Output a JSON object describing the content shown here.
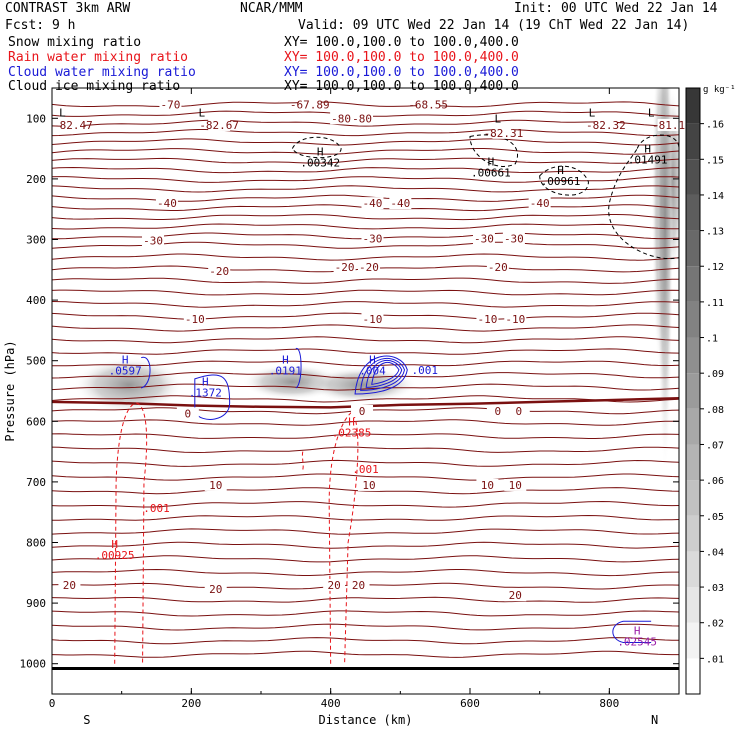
{
  "header": {
    "model": "CONTRAST  3km ARW",
    "center": "NCAR/MMM",
    "init": "Init: 00 UTC Wed 22 Jan 14",
    "fcst": "Fcst:   9 h",
    "valid": "Valid: 09 UTC Wed 22 Jan 14 (19 ChT Wed 22 Jan 14)"
  },
  "legend": [
    {
      "label": "Snow mixing ratio",
      "xy": "",
      "color": "#000000"
    },
    {
      "label": "Rain water mixing ratio",
      "xy": "XY= 100.0,100.0 to 100.0,400.0",
      "color": "#e8141a"
    },
    {
      "label": "Cloud water mixing ratio",
      "xy": "XY= 100.0,100.0 to 100.0,400.0",
      "color": "#1a1ad6"
    },
    {
      "label": "Cloud ice mixing ratio",
      "xy": "XY= 100.0,100.0 to 100.0,400.0",
      "color": "#000000"
    }
  ],
  "snow_xy": "XY= 100.0,100.0 to 100.0,400.0",
  "chart_data": {
    "type": "cross-section contour",
    "xlabel": "Distance (km)",
    "ylabel": "Pressure (hPa)",
    "xlim": [
      0,
      900
    ],
    "ylim": [
      1050,
      50
    ],
    "x_ticks": [
      0,
      200,
      400,
      600,
      800
    ],
    "y_ticks": [
      100,
      200,
      300,
      400,
      500,
      600,
      700,
      800,
      900,
      1000
    ],
    "end_labels": {
      "left": "S",
      "right": "N"
    },
    "colorbar": {
      "unit": "g kg⁻¹",
      "levels": [
        ".01",
        ".02",
        ".03",
        ".04",
        ".05",
        ".06",
        ".07",
        ".08",
        ".09",
        ".1",
        ".11",
        ".12",
        ".13",
        ".14",
        ".15",
        ".16"
      ]
    },
    "temperature_labels": [
      {
        "text": "-70",
        "x": 170,
        "p": 77
      },
      {
        "text": "-67.89",
        "x": 370,
        "p": 77
      },
      {
        "text": "-68.55",
        "x": 540,
        "p": 77
      },
      {
        "text": "-80",
        "x": 415,
        "p": 100
      },
      {
        "text": "-80",
        "x": 445,
        "p": 100
      },
      {
        "text": "-82.47",
        "x": 30,
        "p": 111
      },
      {
        "text": "-82.67",
        "x": 240,
        "p": 111
      },
      {
        "text": "-82.31",
        "x": 648,
        "p": 124
      },
      {
        "text": "-82.32",
        "x": 795,
        "p": 111
      },
      {
        "text": "-81.1",
        "x": 885,
        "p": 111
      },
      {
        "text": "-40",
        "x": 165,
        "p": 240
      },
      {
        "text": "-40",
        "x": 460,
        "p": 240
      },
      {
        "text": "-40",
        "x": 500,
        "p": 240
      },
      {
        "text": "-40",
        "x": 700,
        "p": 240
      },
      {
        "text": "-30",
        "x": 145,
        "p": 302
      },
      {
        "text": "-30",
        "x": 460,
        "p": 298
      },
      {
        "text": "-30",
        "x": 620,
        "p": 298
      },
      {
        "text": "-30",
        "x": 663,
        "p": 298
      },
      {
        "text": "-20",
        "x": 240,
        "p": 352
      },
      {
        "text": "-20",
        "x": 420,
        "p": 345
      },
      {
        "text": "-20",
        "x": 455,
        "p": 345
      },
      {
        "text": "-20",
        "x": 640,
        "p": 345
      },
      {
        "text": "-10",
        "x": 205,
        "p": 431
      },
      {
        "text": "-10",
        "x": 460,
        "p": 431
      },
      {
        "text": "-10",
        "x": 625,
        "p": 431
      },
      {
        "text": "-10",
        "x": 665,
        "p": 431
      },
      {
        "text": "0",
        "x": 195,
        "p": 587
      },
      {
        "text": "0",
        "x": 445,
        "p": 583
      },
      {
        "text": "0",
        "x": 640,
        "p": 583
      },
      {
        "text": "0",
        "x": 670,
        "p": 583
      },
      {
        "text": "10",
        "x": 235,
        "p": 705
      },
      {
        "text": "10",
        "x": 455,
        "p": 705
      },
      {
        "text": "10",
        "x": 625,
        "p": 705
      },
      {
        "text": "10",
        "x": 665,
        "p": 705
      },
      {
        "text": "20",
        "x": 25,
        "p": 870
      },
      {
        "text": "20",
        "x": 235,
        "p": 877
      },
      {
        "text": "20",
        "x": 405,
        "p": 870
      },
      {
        "text": "20",
        "x": 440,
        "p": 870
      },
      {
        "text": "20",
        "x": 665,
        "p": 887
      }
    ],
    "extrema_labels": [
      {
        "kind": "L",
        "value": "",
        "x": 15,
        "p": 100,
        "color": "#000000"
      },
      {
        "kind": "L",
        "value": "",
        "x": 215,
        "p": 100,
        "color": "#000000"
      },
      {
        "kind": "L",
        "value": "",
        "x": 640,
        "p": 110,
        "color": "#000000"
      },
      {
        "kind": "L",
        "value": "",
        "x": 775,
        "p": 100,
        "color": "#000000"
      },
      {
        "kind": "L",
        "value": "",
        "x": 860,
        "p": 100,
        "color": "#000000"
      },
      {
        "kind": "H",
        "value": ".00342",
        "x": 385,
        "p": 165,
        "color": "#000000"
      },
      {
        "kind": "H",
        "value": ".00661",
        "x": 630,
        "p": 181,
        "color": "#000000"
      },
      {
        "kind": "H",
        "value": ".00961",
        "x": 730,
        "p": 195,
        "color": "#000000"
      },
      {
        "kind": "H",
        "value": ".01491",
        "x": 855,
        "p": 160,
        "color": "#000000"
      },
      {
        "kind": "H",
        "value": ".0597",
        "x": 105,
        "p": 508,
        "color": "#1a1ad6"
      },
      {
        "kind": "H",
        "value": ".1372",
        "x": 220,
        "p": 544,
        "color": "#1a1ad6"
      },
      {
        "kind": "H",
        "value": ".0191",
        "x": 335,
        "p": 508,
        "color": "#1a1ad6"
      },
      {
        "kind": "H",
        "value": ".004",
        "x": 460,
        "p": 508,
        "color": "#1a1ad6"
      },
      {
        "kind": "H",
        "value": ".02385",
        "x": 430,
        "p": 610,
        "color": "#e8141a"
      },
      {
        "kind": "H",
        "value": ".00925",
        "x": 90,
        "p": 812,
        "color": "#e8141a"
      },
      {
        "kind": "H",
        "value": ".02545",
        "x": 840,
        "p": 955,
        "color": "#9b1fa8"
      }
    ],
    "contour_labels": [
      {
        "text": ".001",
        "x": 535,
        "p": 522,
        "color": "#1a1ad6"
      },
      {
        "text": ".001",
        "x": 150,
        "p": 750,
        "color": "#e8141a"
      },
      {
        "text": ".001",
        "x": 450,
        "p": 685,
        "color": "#e8141a"
      }
    ],
    "freezing_level": {
      "x": [
        0,
        100,
        200,
        300,
        400,
        500,
        600,
        700,
        800,
        900
      ],
      "p": [
        568,
        570,
        574,
        576,
        577,
        573,
        571,
        568,
        565,
        562
      ]
    },
    "surface": {
      "p": 1008
    }
  }
}
